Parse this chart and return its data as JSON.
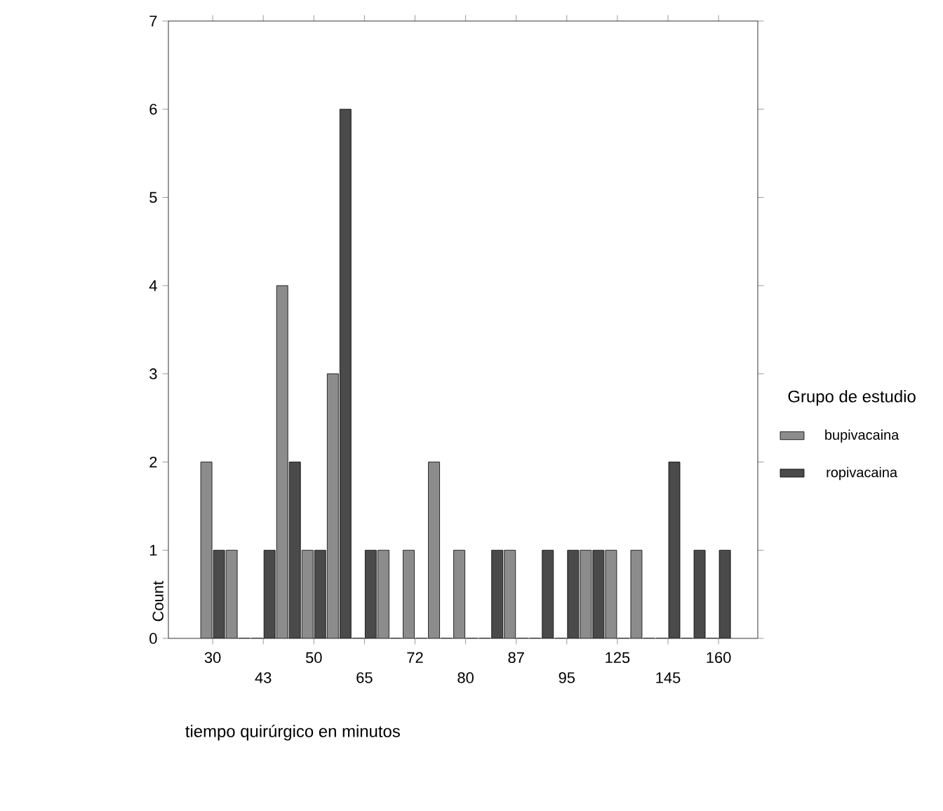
{
  "chart_data": {
    "type": "bar",
    "xlabel": "tiempo quirúrgico en minutos",
    "ylabel": "Count",
    "legend_title": "Grupo de estudio",
    "categories": [
      "30",
      null,
      "43",
      null,
      "50",
      null,
      "65",
      null,
      "72",
      null,
      "80",
      null,
      "87",
      null,
      "95",
      null,
      "125",
      null,
      "145",
      null,
      "160"
    ],
    "series": [
      {
        "name": "bupivacaina",
        "color": "#8c8c8c",
        "values": [
          2,
          1,
          0,
          4,
          1,
          3,
          0,
          1,
          1,
          2,
          1,
          0,
          1,
          0,
          0,
          1,
          1,
          1,
          0,
          0,
          0
        ]
      },
      {
        "name": "ropivacaina",
        "color": "#4a4a4a",
        "values": [
          1,
          0,
          1,
          2,
          1,
          6,
          1,
          0,
          0,
          0,
          0,
          1,
          0,
          1,
          1,
          1,
          0,
          0,
          2,
          1,
          1
        ]
      }
    ],
    "ylim": [
      0,
      7
    ],
    "yticks": [
      0,
      1,
      2,
      3,
      4,
      5,
      6,
      7
    ],
    "grid": false,
    "legend": "right"
  }
}
